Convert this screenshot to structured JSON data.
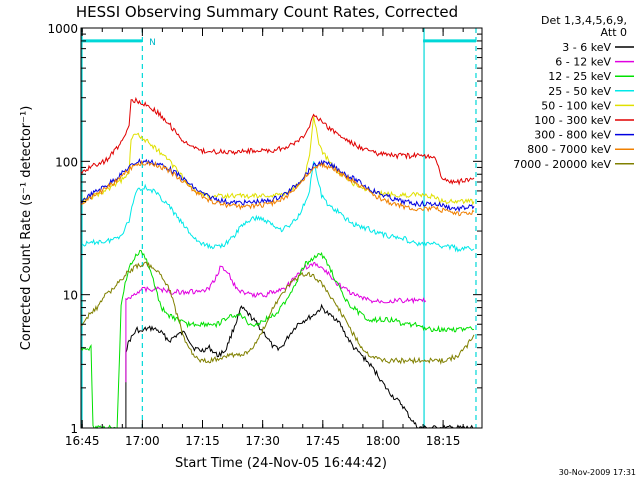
{
  "chart_data": {
    "type": "line",
    "title": "HESSI Observing Summary Count Rates, Corrected",
    "xlabel": "Start Time (24-Nov-05 16:44:42)",
    "ylabel": "Corrected Count Rate (s⁻¹ detector⁻¹)",
    "x_unit": "minutes after 16:44:42",
    "x_ticks": [
      {
        "value": 0.3,
        "label": "16:45"
      },
      {
        "value": 15.3,
        "label": "17:00"
      },
      {
        "value": 30.3,
        "label": "17:15"
      },
      {
        "value": 45.3,
        "label": "17:30"
      },
      {
        "value": 60.3,
        "label": "17:45"
      },
      {
        "value": 75.3,
        "label": "18:00"
      },
      {
        "value": 90.3,
        "label": "18:15"
      }
    ],
    "xlim": [
      0,
      100
    ],
    "ylim": [
      1,
      1000
    ],
    "y_scale": "log",
    "y_ticks": [
      {
        "value": 1,
        "label": "1"
      },
      {
        "value": 10,
        "label": "10"
      },
      {
        "value": 100,
        "label": "100"
      },
      {
        "value": 1000,
        "label": "1000"
      }
    ],
    "legend_header": [
      "Det 1,3,4,5,6,9,",
      "Att 0"
    ],
    "legend_position": "right",
    "series": [
      {
        "name": "3 - 6 keV",
        "color": "#000000",
        "x": [
          11.2,
          11.2,
          12,
          14,
          15,
          16,
          18,
          20,
          22,
          24,
          26,
          28,
          30,
          32,
          34,
          36,
          38,
          40,
          42,
          44,
          46,
          48,
          50,
          52,
          54,
          56,
          58,
          60,
          62,
          64,
          66,
          68,
          70,
          72,
          74,
          76,
          78,
          80,
          82,
          84,
          86,
          88,
          90,
          92,
          94,
          96,
          98
        ],
        "y": [
          1,
          3.8,
          4.5,
          5.5,
          5.2,
          5.5,
          5.6,
          5.2,
          4.5,
          5,
          5.2,
          4,
          3.8,
          4,
          3.5,
          3.8,
          5.5,
          8,
          7,
          6,
          5,
          4,
          4,
          5,
          6,
          6.5,
          7,
          8,
          7,
          6.5,
          5,
          4,
          3.5,
          3,
          2.5,
          2,
          1.7,
          1.5,
          1.2,
          1,
          1,
          1,
          1,
          1,
          1,
          1,
          1
        ]
      },
      {
        "name": "6 - 12 keV",
        "color": "#e000e0",
        "x": [
          11.2,
          11.2,
          13,
          15,
          18,
          20,
          22,
          24,
          26,
          28,
          30,
          32,
          34,
          35,
          36,
          37,
          38,
          40,
          42,
          44,
          46,
          48,
          50,
          52,
          54,
          56,
          58,
          60,
          62,
          64,
          66,
          68,
          70,
          72,
          74,
          76,
          78,
          80,
          82,
          84,
          86
        ],
        "y": [
          2.2,
          9,
          10,
          11,
          11,
          11,
          10.5,
          10.5,
          10.5,
          10.5,
          10.5,
          11,
          14,
          17,
          15,
          14,
          12,
          10.5,
          10,
          10,
          10,
          10.5,
          11,
          12,
          14,
          16,
          17,
          16,
          14,
          12,
          11,
          10,
          9.5,
          9,
          9,
          9,
          9,
          9,
          9,
          9,
          9
        ]
      },
      {
        "name": "12 - 25 keV",
        "color": "#00e000",
        "x": [
          0,
          1,
          2,
          2.5,
          3,
          3.5,
          4,
          6,
          8,
          9,
          10,
          11,
          12,
          13,
          14,
          15,
          16,
          17,
          18,
          19,
          20,
          22,
          24,
          26,
          28,
          30,
          32,
          34,
          36,
          38,
          40,
          42,
          44,
          46,
          48,
          50,
          52,
          54,
          56,
          58,
          60,
          62,
          64,
          66,
          68,
          70,
          72,
          74,
          76,
          78,
          80,
          82,
          84,
          86,
          88,
          90,
          92,
          94,
          96,
          98
        ],
        "y": [
          4,
          4,
          4,
          4,
          1,
          1,
          1,
          1,
          1,
          1,
          8,
          12,
          16,
          18,
          20,
          21,
          19,
          16,
          13,
          10,
          8,
          7,
          6.5,
          6,
          6,
          6,
          6,
          6,
          6.5,
          7,
          7,
          6,
          6,
          6.5,
          7,
          8,
          10,
          13,
          17,
          19,
          20,
          16,
          12,
          9,
          8,
          7,
          6.5,
          6.5,
          6.5,
          6.5,
          6,
          6,
          6,
          5.5,
          5.5,
          5.5,
          5.5,
          5.5,
          5.5,
          5.5
        ]
      },
      {
        "name": "25 - 50 keV",
        "color": "#00e8e8",
        "x": [
          0,
          2,
          4,
          6,
          8,
          10,
          12,
          13,
          14,
          16,
          18,
          20,
          22,
          24,
          26,
          28,
          30,
          32,
          34,
          36,
          38,
          40,
          42,
          44,
          46,
          48,
          50,
          52,
          54,
          56,
          57,
          58,
          59,
          60,
          62,
          64,
          66,
          68,
          70,
          72,
          74,
          76,
          78,
          80,
          82,
          84,
          86,
          88,
          90,
          92,
          94,
          96,
          98
        ],
        "y": [
          24,
          24,
          25,
          25,
          26,
          28,
          36,
          50,
          62,
          64,
          60,
          53,
          46,
          38,
          32,
          27,
          24,
          23,
          23,
          24,
          27,
          33,
          36,
          38,
          36,
          33,
          31,
          33,
          38,
          50,
          62,
          100,
          74,
          55,
          46,
          42,
          37,
          34,
          32,
          31,
          29,
          28,
          27,
          27,
          25,
          24,
          24,
          24,
          23,
          23,
          22,
          22,
          22
        ]
      },
      {
        "name": "50 - 100 keV",
        "color": "#e0e000",
        "x": [
          0,
          2,
          4,
          6,
          8,
          10,
          12,
          12.5,
          14,
          16,
          18,
          20,
          22,
          24,
          26,
          28,
          30,
          32,
          34,
          36,
          38,
          40,
          42,
          44,
          46,
          48,
          50,
          52,
          54,
          56,
          57,
          58,
          59,
          60,
          62,
          64,
          66,
          68,
          70,
          72,
          74,
          76,
          78,
          80,
          82,
          84,
          86,
          88,
          90,
          92,
          94,
          96,
          98
        ],
        "y": [
          50,
          53,
          56,
          60,
          65,
          72,
          85,
          150,
          160,
          145,
          130,
          115,
          100,
          85,
          72,
          62,
          57,
          55,
          55,
          55,
          55,
          55,
          55,
          55,
          55,
          55,
          56,
          60,
          66,
          80,
          115,
          225,
          150,
          120,
          100,
          85,
          75,
          68,
          63,
          60,
          58,
          57,
          56,
          56,
          56,
          56,
          55,
          55,
          50,
          50,
          50,
          50,
          50
        ]
      },
      {
        "name": "100 - 300 keV",
        "color": "#e00000",
        "x": [
          0,
          2,
          4,
          6,
          8,
          10,
          12,
          12.5,
          14,
          16,
          18,
          20,
          22,
          24,
          26,
          28,
          30,
          32,
          34,
          36,
          38,
          40,
          42,
          44,
          46,
          48,
          50,
          52,
          54,
          56,
          57,
          58,
          59,
          60,
          62,
          64,
          66,
          68,
          70,
          72,
          74,
          76,
          78,
          80,
          82,
          84,
          86,
          88,
          90,
          92,
          94,
          96,
          98
        ],
        "y": [
          80,
          90,
          95,
          100,
          115,
          140,
          180,
          290,
          285,
          270,
          245,
          220,
          190,
          160,
          140,
          125,
          120,
          118,
          118,
          118,
          118,
          118,
          120,
          120,
          120,
          120,
          125,
          130,
          140,
          160,
          180,
          230,
          215,
          195,
          175,
          160,
          145,
          135,
          125,
          120,
          115,
          112,
          110,
          110,
          110,
          110,
          110,
          110,
          75,
          70,
          70,
          72,
          75
        ]
      },
      {
        "name": "300 - 800 keV",
        "color": "#0000e0",
        "x": [
          0,
          2,
          4,
          6,
          8,
          10,
          12,
          14,
          16,
          18,
          20,
          22,
          24,
          26,
          28,
          30,
          32,
          34,
          36,
          38,
          40,
          42,
          44,
          46,
          48,
          50,
          52,
          54,
          56,
          58,
          60,
          62,
          64,
          66,
          68,
          70,
          72,
          74,
          76,
          78,
          80,
          82,
          84,
          86,
          88,
          90,
          92,
          94,
          96,
          98
        ],
        "y": [
          50,
          55,
          60,
          65,
          72,
          80,
          90,
          100,
          100,
          98,
          94,
          88,
          80,
          72,
          64,
          58,
          54,
          52,
          50,
          49,
          49,
          49,
          50,
          50,
          52,
          55,
          60,
          68,
          80,
          92,
          98,
          94,
          88,
          80,
          74,
          68,
          62,
          58,
          55,
          52,
          50,
          49,
          48,
          48,
          48,
          47,
          45,
          44,
          45,
          46
        ]
      },
      {
        "name": "800 - 7000 keV",
        "color": "#f08000",
        "x": [
          0,
          2,
          4,
          6,
          8,
          10,
          12,
          14,
          16,
          18,
          20,
          22,
          24,
          26,
          28,
          30,
          32,
          34,
          36,
          38,
          40,
          42,
          44,
          46,
          48,
          50,
          52,
          54,
          56,
          58,
          60,
          62,
          64,
          66,
          68,
          70,
          72,
          74,
          76,
          78,
          80,
          82,
          84,
          86,
          88,
          90,
          92,
          94,
          96,
          98
        ],
        "y": [
          47,
          52,
          57,
          62,
          68,
          76,
          86,
          96,
          97,
          95,
          91,
          85,
          77,
          69,
          61,
          55,
          51,
          49,
          47,
          46,
          46,
          46,
          47,
          47,
          49,
          52,
          57,
          65,
          77,
          88,
          94,
          90,
          84,
          76,
          70,
          64,
          58,
          54,
          51,
          48,
          46,
          45,
          44,
          44,
          44,
          43,
          41,
          40,
          41,
          42
        ]
      },
      {
        "name": "7000 - 20000 keV",
        "color": "#808000",
        "x": [
          0,
          2,
          4,
          6,
          8,
          10,
          12,
          14,
          16,
          18,
          20,
          22,
          24,
          26,
          28,
          30,
          32,
          34,
          36,
          38,
          40,
          42,
          44,
          46,
          48,
          50,
          52,
          54,
          56,
          58,
          60,
          62,
          64,
          66,
          68,
          70,
          72,
          74,
          76,
          78,
          80,
          82,
          84,
          86,
          88,
          90,
          92,
          94,
          96,
          98
        ],
        "y": [
          6,
          7,
          8,
          10,
          11,
          13,
          15,
          16.5,
          17,
          16,
          14,
          11,
          7,
          4.5,
          3.5,
          3.2,
          3.2,
          3.3,
          3.5,
          3.5,
          3.5,
          3.8,
          4.5,
          6,
          8,
          10,
          12,
          13.5,
          14.5,
          14,
          12,
          10,
          8,
          6.5,
          5,
          4,
          3.5,
          3.3,
          3.2,
          3.2,
          3.2,
          3.2,
          3.2,
          3.2,
          3.2,
          3.2,
          3.3,
          3.5,
          4,
          5
        ]
      }
    ],
    "attenuator_bars": [
      {
        "x_start": 0,
        "x_end": 15.3,
        "value": 800
      },
      {
        "x_start": 85.3,
        "x_end": 98.5,
        "value": 800
      }
    ],
    "annotations": [
      {
        "text": "N",
        "x": 17.0,
        "y": 800
      }
    ],
    "vlines_solid": [
      0,
      85.3
    ],
    "vlines_dashed": [
      15.3,
      98.5
    ],
    "footer": "30-Nov-2009 17:31"
  }
}
